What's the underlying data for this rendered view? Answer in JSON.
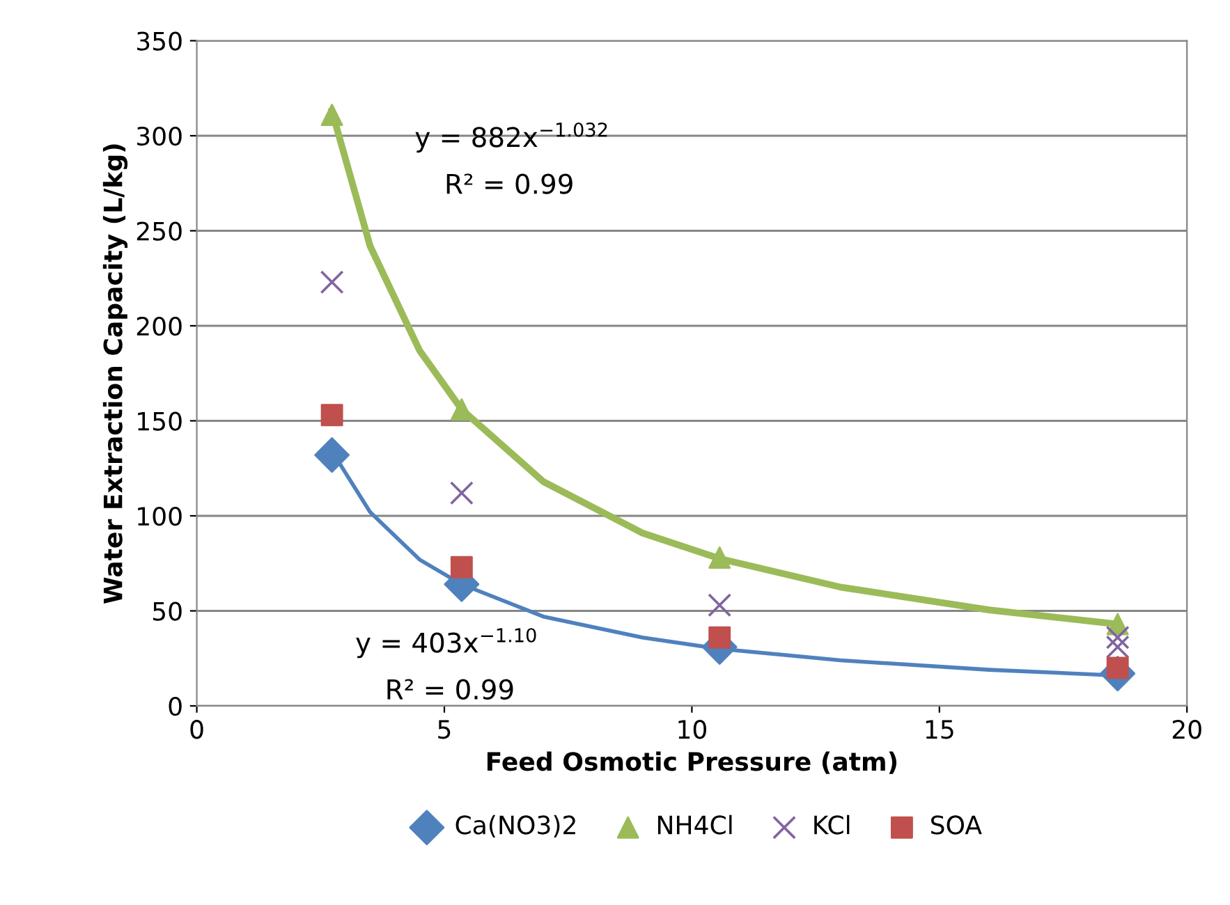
{
  "chart_data": {
    "type": "scatter",
    "xlabel": "Feed Osmotic Pressure (atm)",
    "ylabel": "Water Extraction Capacity (L/kg)",
    "xlim": [
      0,
      20
    ],
    "xticks": [
      0,
      5,
      10,
      15,
      20
    ],
    "ylim": [
      0,
      350
    ],
    "yticks": [
      0,
      50,
      100,
      150,
      200,
      250,
      300,
      350
    ],
    "grid": "y",
    "legend": "bottom",
    "series": [
      {
        "name": "Ca(NO3)2",
        "color": "#4f81bd",
        "marker": "diamond",
        "x": [
          2.73,
          5.35,
          10.56,
          18.6
        ],
        "values": [
          132,
          64,
          31,
          17
        ]
      },
      {
        "name": "NH4Cl",
        "color": "#9bbb59",
        "marker": "triangle",
        "x": [
          2.73,
          5.35,
          10.56,
          18.6
        ],
        "values": [
          311,
          156,
          78,
          43
        ]
      },
      {
        "name": "KCl",
        "color": "#8064a2",
        "marker": "cross",
        "x": [
          2.73,
          5.35,
          10.56,
          18.6,
          18.6
        ],
        "values": [
          223,
          112,
          53,
          36,
          31
        ]
      },
      {
        "name": "SOA",
        "color": "#c0504d",
        "marker": "square",
        "x": [
          2.73,
          5.35,
          10.56,
          18.6
        ],
        "values": [
          153,
          73,
          36,
          20
        ]
      },
      {
        "type": "line",
        "color": "#9bbb59",
        "marker": "none",
        "line_style": "solid",
        "x": [
          2.73,
          3.5,
          4.5,
          5.35,
          7,
          9,
          10.56,
          13,
          16,
          18.6
        ],
        "values": [
          313,
          242,
          187,
          156,
          118,
          91,
          77.5,
          62.5,
          50.5,
          43
        ]
      },
      {
        "type": "line",
        "color": "#4f81bd",
        "marker": "none",
        "line_style": "solid",
        "x": [
          2.73,
          3.5,
          4.5,
          5.35,
          7,
          9,
          10.56,
          13,
          16,
          18.6
        ],
        "values": [
          134,
          102,
          77,
          64,
          47,
          36,
          30,
          24,
          19,
          16
        ]
      }
    ],
    "annotations": [
      "y = 882x$^{−1.032}$",
      "R² = 0.99",
      "y = 403x$^{−1.10}$",
      "R² = 0.99"
    ]
  }
}
